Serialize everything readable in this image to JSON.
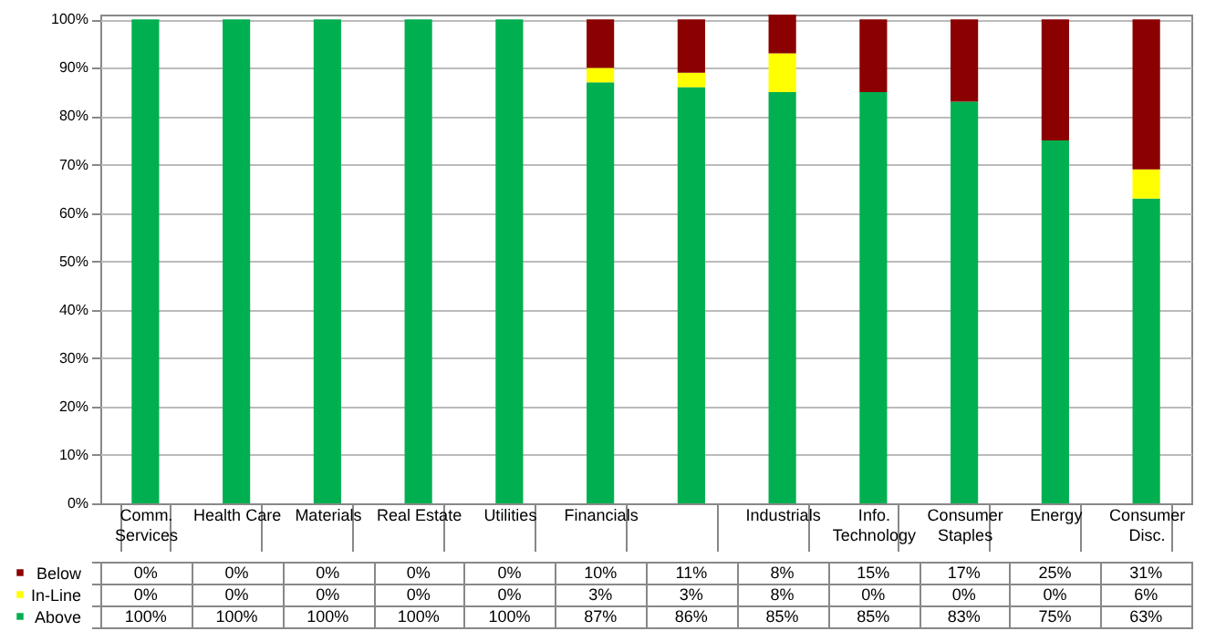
{
  "chart_data": {
    "type": "bar",
    "stacked": true,
    "categories": [
      "Comm. Services",
      "Health Care",
      "Materials",
      "Real Estate",
      "Utilities",
      "Financials",
      null,
      "Industrials",
      "Info. Technology",
      "Consumer Staples",
      "Energy",
      "Consumer Disc."
    ],
    "series": [
      {
        "name": "Above",
        "color": "#00b050",
        "values": [
          100,
          100,
          100,
          100,
          100,
          87,
          86,
          85,
          85,
          83,
          75,
          63
        ],
        "value_labels": [
          "100%",
          "100%",
          "100%",
          "100%",
          "100%",
          "87%",
          "86%",
          "85%",
          "85%",
          "83%",
          "75%",
          "63%"
        ]
      },
      {
        "name": "In-Line",
        "color": "#ffff00",
        "values": [
          0,
          0,
          0,
          0,
          0,
          3,
          3,
          8,
          0,
          0,
          0,
          6
        ],
        "value_labels": [
          "0%",
          "0%",
          "0%",
          "0%",
          "0%",
          "3%",
          "3%",
          "8%",
          "0%",
          "0%",
          "0%",
          "6%"
        ]
      },
      {
        "name": "Below",
        "color": "#8b0000",
        "values": [
          0,
          0,
          0,
          0,
          0,
          10,
          11,
          8,
          15,
          17,
          25,
          31
        ],
        "value_labels": [
          "0%",
          "0%",
          "0%",
          "0%",
          "0%",
          "10%",
          "11%",
          "8%",
          "15%",
          "17%",
          "25%",
          "31%"
        ]
      }
    ],
    "ylim": [
      0,
      101
    ],
    "yticks": [
      {
        "value": 0,
        "label": "0%"
      },
      {
        "value": 10,
        "label": "10%"
      },
      {
        "value": 20,
        "label": "20%"
      },
      {
        "value": 30,
        "label": "30%"
      },
      {
        "value": 40,
        "label": "40%"
      },
      {
        "value": 50,
        "label": "50%"
      },
      {
        "value": 60,
        "label": "60%"
      },
      {
        "value": 70,
        "label": "70%"
      },
      {
        "value": 80,
        "label": "80%"
      },
      {
        "value": 90,
        "label": "90%"
      },
      {
        "value": 100,
        "label": "100%"
      }
    ],
    "grid": "y",
    "legend": "bottom left"
  }
}
